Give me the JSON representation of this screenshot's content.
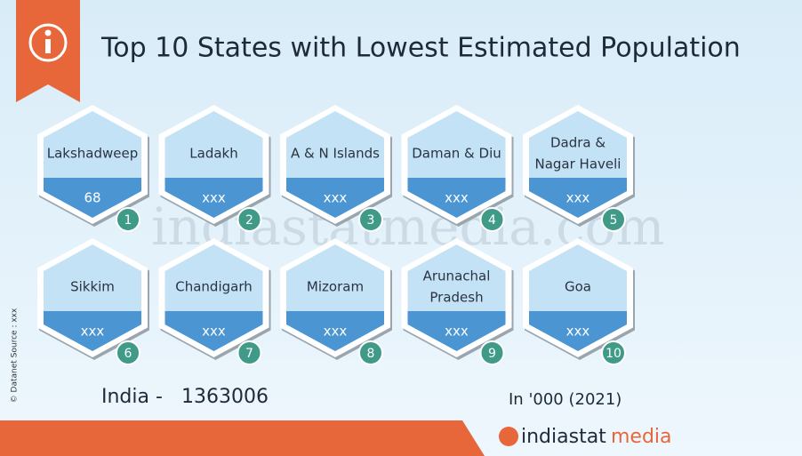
{
  "header": {
    "title": "Top 10 States with Lowest Estimated Population"
  },
  "states": [
    {
      "name": [
        "Lakshadweep"
      ],
      "value": 68,
      "rank": 1
    },
    {
      "name": [
        "Ladakh"
      ],
      "value": "xxx",
      "rank": 2
    },
    {
      "name": [
        "A & N Islands"
      ],
      "value": "xxx",
      "rank": 3
    },
    {
      "name": [
        "Daman & Diu"
      ],
      "value": "xxx",
      "rank": 4
    },
    {
      "name": [
        "Dadra &",
        "Nagar Haveli"
      ],
      "value": "xxx",
      "rank": 5
    },
    {
      "name": [
        "Sikkim"
      ],
      "value": "xxx",
      "rank": 6
    },
    {
      "name": [
        "Chandigarh"
      ],
      "value": "xxx",
      "rank": 7
    },
    {
      "name": [
        "Mizoram"
      ],
      "value": "xxx",
      "rank": 8
    },
    {
      "name": [
        "Arunachal",
        "Pradesh"
      ],
      "value": "xxx",
      "rank": 9
    },
    {
      "name": [
        "Goa"
      ],
      "value": "xxx",
      "rank": 10
    }
  ],
  "footer": {
    "india_label": "India -",
    "india_value": 1363006,
    "unit": "In '000 (2021)",
    "source": "© Datanet  Source : xxx",
    "brand_1": "indiastat",
    "brand_2": "media",
    "watermark": "indiastatmedia.com"
  }
}
